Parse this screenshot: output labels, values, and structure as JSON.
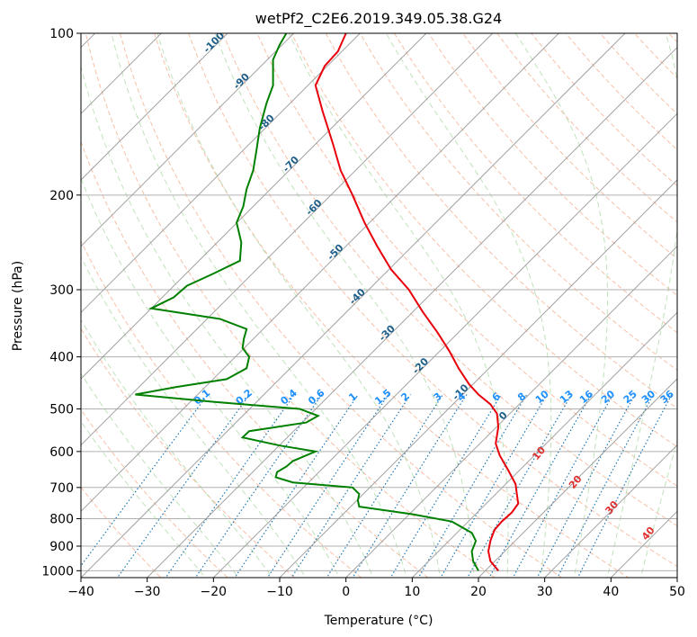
{
  "chart_data": {
    "type": "line",
    "title": "wetPf2_C2E6.2019.349.05.38.G24",
    "xlabel": "Temperature (°C)",
    "ylabel": "Pressure (hPa)",
    "xlim": [
      -40,
      50
    ],
    "ylim": [
      1030,
      100
    ],
    "y_scale": "log",
    "x_ticks": [
      "−40",
      "−30",
      "−20",
      "−10",
      "0",
      "10",
      "20",
      "30",
      "40",
      "50"
    ],
    "y_ticks": [
      "100",
      "200",
      "300",
      "400",
      "500",
      "600",
      "700",
      "800",
      "900",
      "1000"
    ],
    "grid": true,
    "colors": {
      "temperature": "#e8000b",
      "dewpoint": "#008000",
      "isotherm": "#999999",
      "dry_adiabat": "#f4a582",
      "moist_adiabat": "#a6d6a0",
      "mixing_ratio": "#1f77b4",
      "isotherm_label": "#1f5f8b",
      "moist_label": "#e03030",
      "mixing_label": "#1e90ff"
    },
    "series": [
      {
        "key": "temperature",
        "points": [
          {
            "x": 23.0,
            "y": 1000
          },
          {
            "x": 21.8,
            "y": 960
          },
          {
            "x": 21.5,
            "y": 920
          },
          {
            "x": 21.8,
            "y": 880
          },
          {
            "x": 22.4,
            "y": 840
          },
          {
            "x": 23.5,
            "y": 810
          },
          {
            "x": 25.0,
            "y": 780
          },
          {
            "x": 26.0,
            "y": 750
          },
          {
            "x": 25.8,
            "y": 720
          },
          {
            "x": 25.6,
            "y": 690
          },
          {
            "x": 24.5,
            "y": 650
          },
          {
            "x": 23.2,
            "y": 610
          },
          {
            "x": 22.6,
            "y": 580
          },
          {
            "x": 23.0,
            "y": 540
          },
          {
            "x": 22.8,
            "y": 510
          },
          {
            "x": 21.8,
            "y": 490
          },
          {
            "x": 20.0,
            "y": 470
          },
          {
            "x": 18.6,
            "y": 450
          },
          {
            "x": 17.0,
            "y": 420
          },
          {
            "x": 15.6,
            "y": 390
          },
          {
            "x": 13.8,
            "y": 360
          },
          {
            "x": 11.6,
            "y": 330
          },
          {
            "x": 9.5,
            "y": 300
          },
          {
            "x": 6.8,
            "y": 275
          },
          {
            "x": 4.8,
            "y": 250
          },
          {
            "x": 2.8,
            "y": 225
          },
          {
            "x": 1.0,
            "y": 200
          },
          {
            "x": -0.8,
            "y": 180
          },
          {
            "x": -2.0,
            "y": 160
          },
          {
            "x": -3.5,
            "y": 140
          },
          {
            "x": -4.6,
            "y": 125
          },
          {
            "x": -3.2,
            "y": 115
          },
          {
            "x": -1.2,
            "y": 108
          },
          {
            "x": 0.0,
            "y": 100
          }
        ]
      },
      {
        "key": "dewpoint",
        "points": [
          {
            "x": 20.0,
            "y": 1000
          },
          {
            "x": 19.2,
            "y": 960
          },
          {
            "x": 19.0,
            "y": 920
          },
          {
            "x": 19.6,
            "y": 880
          },
          {
            "x": 19.0,
            "y": 850
          },
          {
            "x": 16.0,
            "y": 810
          },
          {
            "x": 10.0,
            "y": 785
          },
          {
            "x": 2.0,
            "y": 760
          },
          {
            "x": 1.8,
            "y": 740
          },
          {
            "x": 2.0,
            "y": 720
          },
          {
            "x": 1.0,
            "y": 700
          },
          {
            "x": -8.0,
            "y": 685
          },
          {
            "x": -10.6,
            "y": 670
          },
          {
            "x": -10.4,
            "y": 655
          },
          {
            "x": -9.0,
            "y": 640
          },
          {
            "x": -8.0,
            "y": 625
          },
          {
            "x": -4.6,
            "y": 600
          },
          {
            "x": -10.0,
            "y": 585
          },
          {
            "x": -15.6,
            "y": 565
          },
          {
            "x": -14.6,
            "y": 550
          },
          {
            "x": -6.0,
            "y": 530
          },
          {
            "x": -4.2,
            "y": 515
          },
          {
            "x": -7.0,
            "y": 500
          },
          {
            "x": -20.0,
            "y": 485
          },
          {
            "x": -31.8,
            "y": 470
          },
          {
            "x": -25.6,
            "y": 455
          },
          {
            "x": -18.0,
            "y": 440
          },
          {
            "x": -15.0,
            "y": 420
          },
          {
            "x": -14.6,
            "y": 400
          },
          {
            "x": -15.6,
            "y": 385
          },
          {
            "x": -15.4,
            "y": 370
          },
          {
            "x": -15.0,
            "y": 355
          },
          {
            "x": -19.0,
            "y": 340
          },
          {
            "x": -29.4,
            "y": 325
          },
          {
            "x": -26.0,
            "y": 310
          },
          {
            "x": -24.0,
            "y": 295
          },
          {
            "x": -20.0,
            "y": 280
          },
          {
            "x": -16.0,
            "y": 265
          },
          {
            "x": -15.8,
            "y": 245
          },
          {
            "x": -16.5,
            "y": 225
          },
          {
            "x": -15.5,
            "y": 210
          },
          {
            "x": -15.0,
            "y": 195
          },
          {
            "x": -14.0,
            "y": 180
          },
          {
            "x": -13.5,
            "y": 165
          },
          {
            "x": -13.0,
            "y": 150
          },
          {
            "x": -12.0,
            "y": 135
          },
          {
            "x": -11.0,
            "y": 125
          },
          {
            "x": -11.0,
            "y": 112
          },
          {
            "x": -10.0,
            "y": 105
          },
          {
            "x": -9.0,
            "y": 100
          }
        ]
      }
    ],
    "isotherm_labels": [
      {
        "t": "-100",
        "x": -100,
        "y": 105
      },
      {
        "t": "-90",
        "x": -90,
        "y": 124
      },
      {
        "t": "-80",
        "x": -80,
        "y": 148
      },
      {
        "t": "-70",
        "x": -70,
        "y": 177
      },
      {
        "t": "-60",
        "x": -60,
        "y": 213
      },
      {
        "t": "-50",
        "x": -50,
        "y": 258
      },
      {
        "t": "-40",
        "x": -40,
        "y": 312
      },
      {
        "t": "-30",
        "x": -30,
        "y": 365
      },
      {
        "t": "-20",
        "x": -20,
        "y": 420
      },
      {
        "t": "-10",
        "x": -10,
        "y": 470
      },
      {
        "t": "0",
        "x": 0,
        "y": 520
      }
    ],
    "mixing_ratio_labels": [
      "0.1",
      "0.2",
      "0.4",
      "0.6",
      "1",
      "1.5",
      "2",
      "3",
      "4",
      "6",
      "8",
      "10",
      "13",
      "16",
      "20",
      "25",
      "30",
      "36"
    ],
    "mixing_ratio_values": [
      0.1,
      0.2,
      0.4,
      0.6,
      1,
      1.5,
      2,
      3,
      4,
      6,
      8,
      10,
      13,
      16,
      20,
      25,
      30,
      36
    ],
    "moist_labels": [
      {
        "t": "10",
        "x": 29.5,
        "y": 610
      },
      {
        "t": "20",
        "x": 35.0,
        "y": 690
      },
      {
        "t": "30",
        "x": 40.5,
        "y": 770
      },
      {
        "t": "40",
        "x": 46.0,
        "y": 860
      }
    ]
  }
}
